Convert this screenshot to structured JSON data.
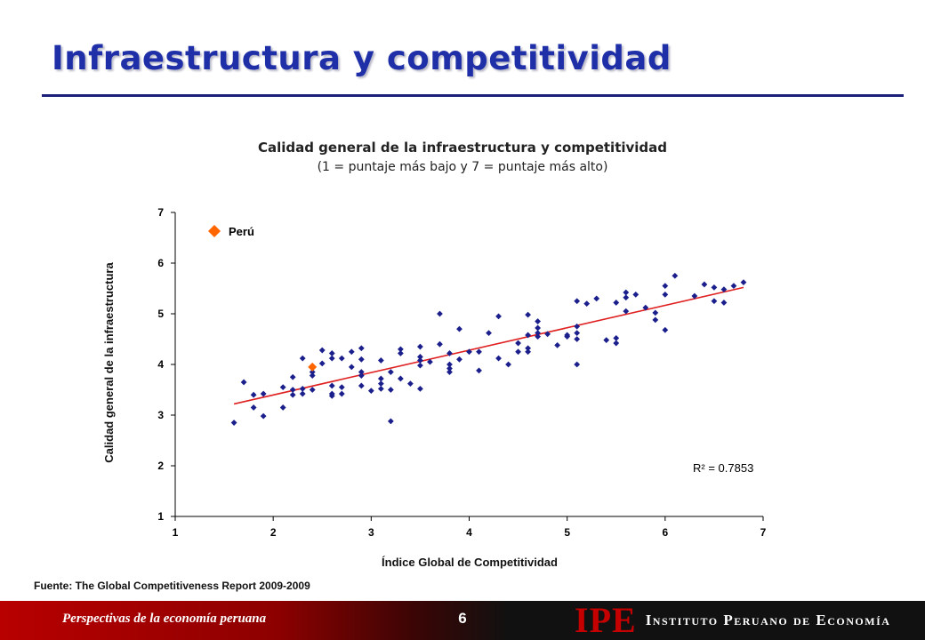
{
  "slide": {
    "title": "Infraestructura y competitividad",
    "source": "Fuente: The Global Competitiveness Report 2009-2009"
  },
  "footer": {
    "left_text": "Perspectivas de la economía peruana",
    "page_number": "6",
    "logo_mark": "IPE",
    "logo_text": "Instituto Peruano de Economía"
  },
  "colors": {
    "title": "#1f2fa8",
    "points": "#1b1f8c",
    "highlight": "#ff6600",
    "trend": "#e02020"
  },
  "chart_data": {
    "type": "scatter",
    "title": "Calidad general de la infraestructura  y competitividad",
    "subtitle": "(1 = puntaje más bajo y 7 = puntaje más alto)",
    "xlabel": "Índice Global de Competitividad",
    "ylabel": "Calidad general de la infraestructura",
    "xlim": [
      1,
      7
    ],
    "ylim": [
      1,
      7
    ],
    "xticks": [
      "1",
      "2",
      "3",
      "4",
      "5",
      "6",
      "7"
    ],
    "yticks": [
      "1",
      "2",
      "3",
      "4",
      "5",
      "6",
      "7"
    ],
    "grid": false,
    "legend": {
      "label": "Perú",
      "position": "top-left"
    },
    "highlight_point": {
      "x": 2.4,
      "y": 3.95
    },
    "trendline": {
      "x": [
        1.6,
        6.8
      ],
      "y": [
        3.22,
        5.52
      ]
    },
    "r2_label": "R² = 0.7853",
    "points": [
      [
        1.6,
        2.85
      ],
      [
        1.7,
        3.65
      ],
      [
        1.8,
        3.4
      ],
      [
        1.8,
        3.15
      ],
      [
        1.9,
        3.42
      ],
      [
        1.9,
        2.98
      ],
      [
        2.1,
        3.55
      ],
      [
        2.1,
        3.15
      ],
      [
        2.2,
        3.75
      ],
      [
        2.2,
        3.5
      ],
      [
        2.2,
        3.4
      ],
      [
        2.3,
        4.12
      ],
      [
        2.3,
        3.52
      ],
      [
        2.3,
        3.42
      ],
      [
        2.4,
        3.85
      ],
      [
        2.4,
        3.78
      ],
      [
        2.4,
        3.5
      ],
      [
        2.5,
        4.28
      ],
      [
        2.5,
        4.02
      ],
      [
        2.6,
        4.22
      ],
      [
        2.6,
        4.12
      ],
      [
        2.6,
        3.58
      ],
      [
        2.6,
        3.42
      ],
      [
        2.6,
        3.38
      ],
      [
        2.7,
        4.12
      ],
      [
        2.7,
        3.55
      ],
      [
        2.7,
        3.42
      ],
      [
        2.8,
        4.25
      ],
      [
        2.8,
        3.95
      ],
      [
        2.9,
        4.32
      ],
      [
        2.9,
        4.1
      ],
      [
        2.9,
        3.85
      ],
      [
        2.9,
        3.78
      ],
      [
        2.9,
        3.58
      ],
      [
        3.0,
        3.48
      ],
      [
        3.1,
        4.08
      ],
      [
        3.1,
        3.72
      ],
      [
        3.1,
        3.62
      ],
      [
        3.1,
        3.52
      ],
      [
        3.2,
        3.85
      ],
      [
        3.2,
        3.5
      ],
      [
        3.2,
        2.88
      ],
      [
        3.3,
        4.3
      ],
      [
        3.3,
        4.22
      ],
      [
        3.3,
        3.72
      ],
      [
        3.4,
        3.62
      ],
      [
        3.5,
        4.35
      ],
      [
        3.5,
        4.15
      ],
      [
        3.5,
        4.08
      ],
      [
        3.5,
        3.98
      ],
      [
        3.5,
        3.52
      ],
      [
        3.6,
        4.05
      ],
      [
        3.7,
        5.0
      ],
      [
        3.7,
        4.4
      ],
      [
        3.8,
        4.22
      ],
      [
        3.8,
        4.0
      ],
      [
        3.8,
        3.92
      ],
      [
        3.8,
        3.85
      ],
      [
        3.9,
        4.7
      ],
      [
        3.9,
        4.1
      ],
      [
        4.0,
        4.25
      ],
      [
        4.1,
        4.25
      ],
      [
        4.1,
        3.88
      ],
      [
        4.2,
        4.62
      ],
      [
        4.3,
        4.95
      ],
      [
        4.3,
        4.12
      ],
      [
        4.4,
        4.0
      ],
      [
        4.5,
        4.42
      ],
      [
        4.5,
        4.25
      ],
      [
        4.6,
        4.98
      ],
      [
        4.6,
        4.58
      ],
      [
        4.6,
        4.32
      ],
      [
        4.6,
        4.25
      ],
      [
        4.7,
        4.85
      ],
      [
        4.7,
        4.72
      ],
      [
        4.7,
        4.62
      ],
      [
        4.7,
        4.55
      ],
      [
        4.8,
        4.6
      ],
      [
        4.9,
        4.38
      ],
      [
        5.0,
        4.58
      ],
      [
        5.0,
        4.55
      ],
      [
        5.1,
        5.25
      ],
      [
        5.1,
        4.75
      ],
      [
        5.1,
        4.62
      ],
      [
        5.1,
        4.5
      ],
      [
        5.1,
        4.0
      ],
      [
        5.2,
        5.2
      ],
      [
        5.3,
        5.3
      ],
      [
        5.4,
        4.48
      ],
      [
        5.5,
        5.22
      ],
      [
        5.5,
        4.52
      ],
      [
        5.5,
        4.42
      ],
      [
        5.6,
        5.42
      ],
      [
        5.6,
        5.32
      ],
      [
        5.6,
        5.05
      ],
      [
        5.7,
        5.38
      ],
      [
        5.8,
        5.12
      ],
      [
        5.9,
        5.02
      ],
      [
        5.9,
        4.88
      ],
      [
        6.0,
        5.55
      ],
      [
        6.0,
        5.38
      ],
      [
        6.0,
        4.68
      ],
      [
        6.1,
        5.75
      ],
      [
        6.3,
        5.35
      ],
      [
        6.4,
        5.58
      ],
      [
        6.5,
        5.52
      ],
      [
        6.5,
        5.25
      ],
      [
        6.6,
        5.48
      ],
      [
        6.6,
        5.22
      ],
      [
        6.7,
        5.55
      ],
      [
        6.8,
        5.62
      ]
    ]
  }
}
